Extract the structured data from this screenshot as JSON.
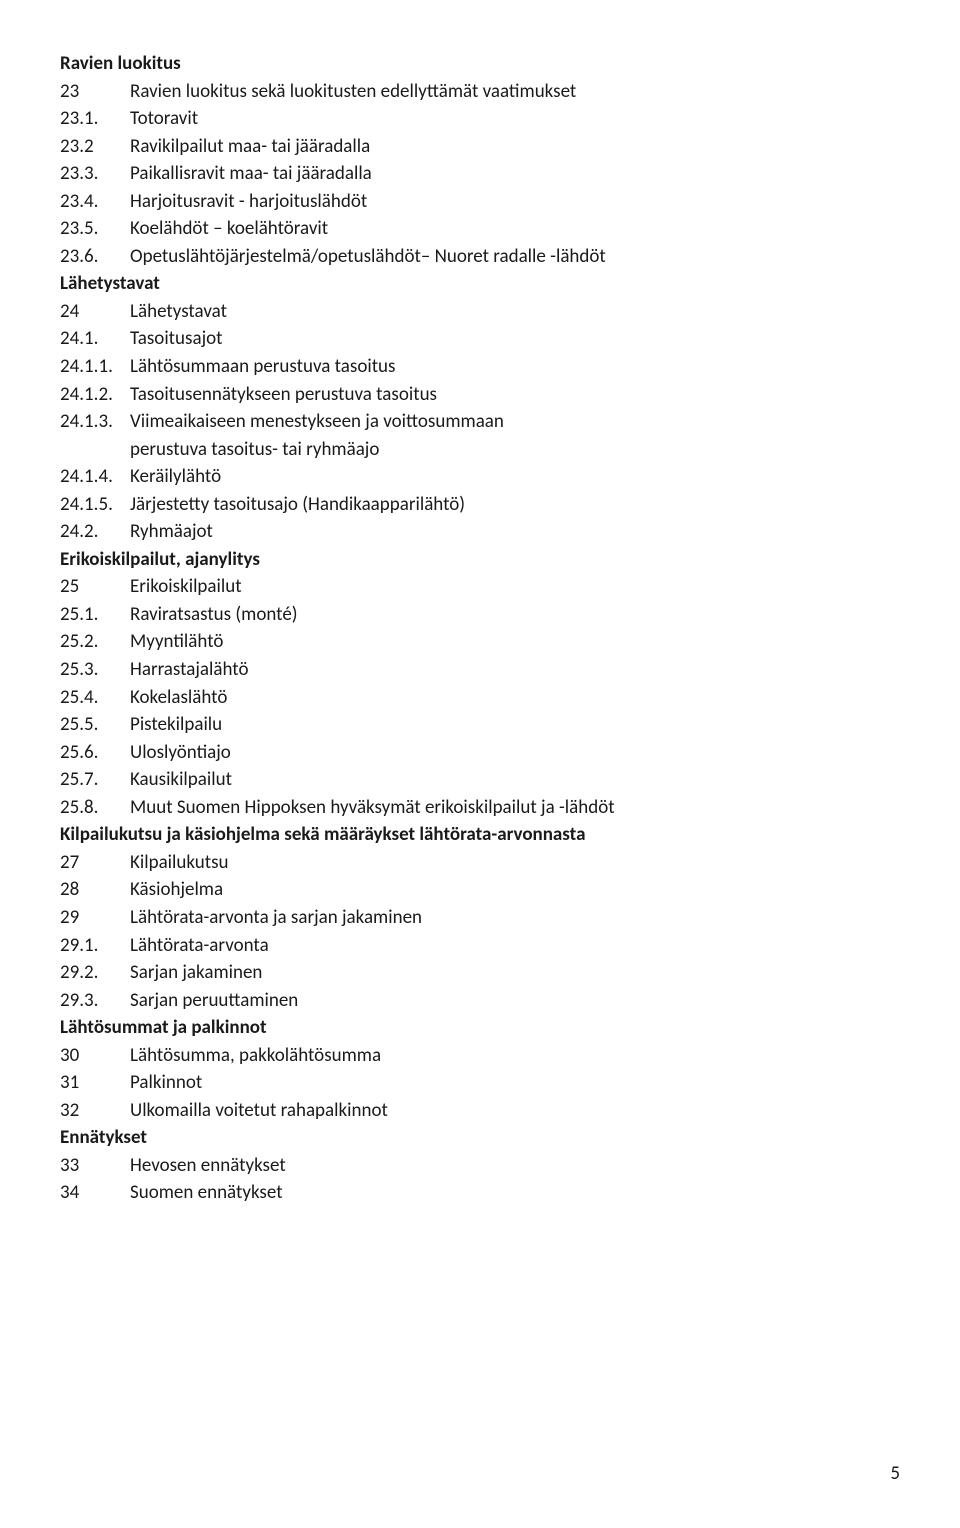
{
  "sections": [
    {
      "heading": "Ravien luokitus",
      "items": [
        {
          "num": "23",
          "text": "Ravien luokitus sekä luokitusten edellyttämät vaatimukset"
        },
        {
          "num": "23.1.",
          "text": "Totoravit"
        },
        {
          "num": "23.2",
          "text": "Ravikilpailut maa- tai jääradalla"
        },
        {
          "num": "23.3.",
          "text": "Paikallisravit maa- tai jääradalla"
        },
        {
          "num": "23.4.",
          "text": "Harjoitusravit - harjoituslähdöt"
        },
        {
          "num": "23.5.",
          "text": "Koelähdöt – koelähtöravit"
        },
        {
          "num": "23.6.",
          "text": "Opetuslähtöjärjestelmä/opetuslähdöt– Nuoret radalle -lähdöt"
        }
      ]
    },
    {
      "heading": "Lähetystavat",
      "items": [
        {
          "num": "24",
          "text": "Lähetystavat"
        },
        {
          "num": "24.1.",
          "text": "Tasoitusajot"
        },
        {
          "num": "24.1.1.",
          "text": "Lähtösummaan perustuva tasoitus"
        },
        {
          "num": "24.1.2.",
          "text": "Tasoitusennätykseen perustuva tasoitus"
        },
        {
          "num": "24.1.3.",
          "text": "Viimeaikaiseen menestykseen ja voittosummaan",
          "cont": "perustuva tasoitus- tai ryhmäajo"
        },
        {
          "num": "24.1.4.",
          "text": "Keräilylähtö"
        },
        {
          "num": "24.1.5.",
          "text": "Järjestetty tasoitusajo (Handikaapparilähtö)"
        },
        {
          "num": "24.2.",
          "text": "Ryhmäajot"
        }
      ]
    },
    {
      "heading": "Erikoiskilpailut, ajanylitys",
      "items": [
        {
          "num": "25",
          "text": "Erikoiskilpailut"
        },
        {
          "num": "25.1.",
          "text": "Raviratsastus (monté)"
        },
        {
          "num": "25.2.",
          "text": "Myyntilähtö"
        },
        {
          "num": "25.3.",
          "text": "Harrastajalähtö"
        },
        {
          "num": "25.4.",
          "text": "Kokelaslähtö"
        },
        {
          "num": "25.5.",
          "text": "Pistekilpailu"
        },
        {
          "num": "25.6.",
          "text": "Uloslyöntiajo"
        },
        {
          "num": "25.7.",
          "text": "Kausikilpailut"
        },
        {
          "num": "25.8.",
          "text": "Muut Suomen Hippoksen hyväksymät erikoiskilpailut ja -lähdöt"
        }
      ]
    },
    {
      "heading": "Kilpailukutsu ja käsiohjelma sekä määräykset lähtörata-arvonnasta",
      "items": [
        {
          "num": "27",
          "text": "Kilpailukutsu"
        },
        {
          "num": "28",
          "text": "Käsiohjelma"
        },
        {
          "num": "29",
          "text": "Lähtörata-arvonta ja sarjan jakaminen"
        },
        {
          "num": "29.1.",
          "text": "Lähtörata-arvonta"
        },
        {
          "num": "29.2.",
          "text": "Sarjan jakaminen"
        },
        {
          "num": "29.3.",
          "text": "Sarjan peruuttaminen"
        }
      ]
    },
    {
      "heading": "Lähtösummat ja palkinnot",
      "items": [
        {
          "num": "30",
          "text": "Lähtösumma, pakkolähtösumma"
        },
        {
          "num": "31",
          "text": "Palkinnot"
        },
        {
          "num": "32",
          "text": "Ulkomailla voitetut rahapalkinnot"
        }
      ]
    },
    {
      "heading": "Ennätykset",
      "items": [
        {
          "num": "33",
          "text": "Hevosen ennätykset"
        },
        {
          "num": "34",
          "text": "Suomen ennätykset"
        }
      ]
    }
  ],
  "pageNumber": "5"
}
